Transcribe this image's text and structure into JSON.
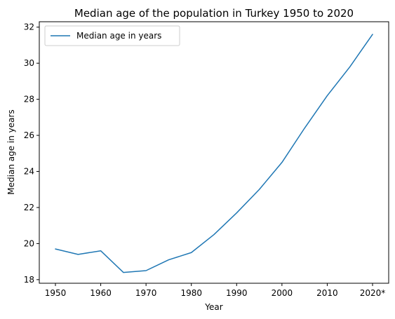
{
  "chart_data": {
    "type": "line",
    "title": "Median age of the population in Turkey 1950 to 2020",
    "xlabel": "Year",
    "ylabel": "Median age in years",
    "categories": [
      "1950",
      "1955",
      "1960",
      "1965",
      "1970",
      "1975",
      "1980",
      "1985",
      "1990",
      "1995",
      "2000",
      "2005",
      "2010",
      "2015",
      "2020*"
    ],
    "x_tick_labels": [
      "1950",
      "1960",
      "1970",
      "1980",
      "1990",
      "2000",
      "2010",
      "2020*"
    ],
    "y_ticks": [
      18,
      20,
      22,
      24,
      26,
      28,
      30,
      32
    ],
    "ylim": [
      17.8,
      32.3
    ],
    "grid": false,
    "legend_position": "top-left",
    "series": [
      {
        "name": "Median age in years",
        "color": "#1f77b4",
        "values": [
          19.7,
          19.4,
          19.6,
          18.4,
          18.5,
          19.1,
          19.5,
          20.5,
          21.7,
          23.0,
          24.5,
          26.4,
          28.2,
          29.8,
          31.6
        ]
      }
    ]
  }
}
